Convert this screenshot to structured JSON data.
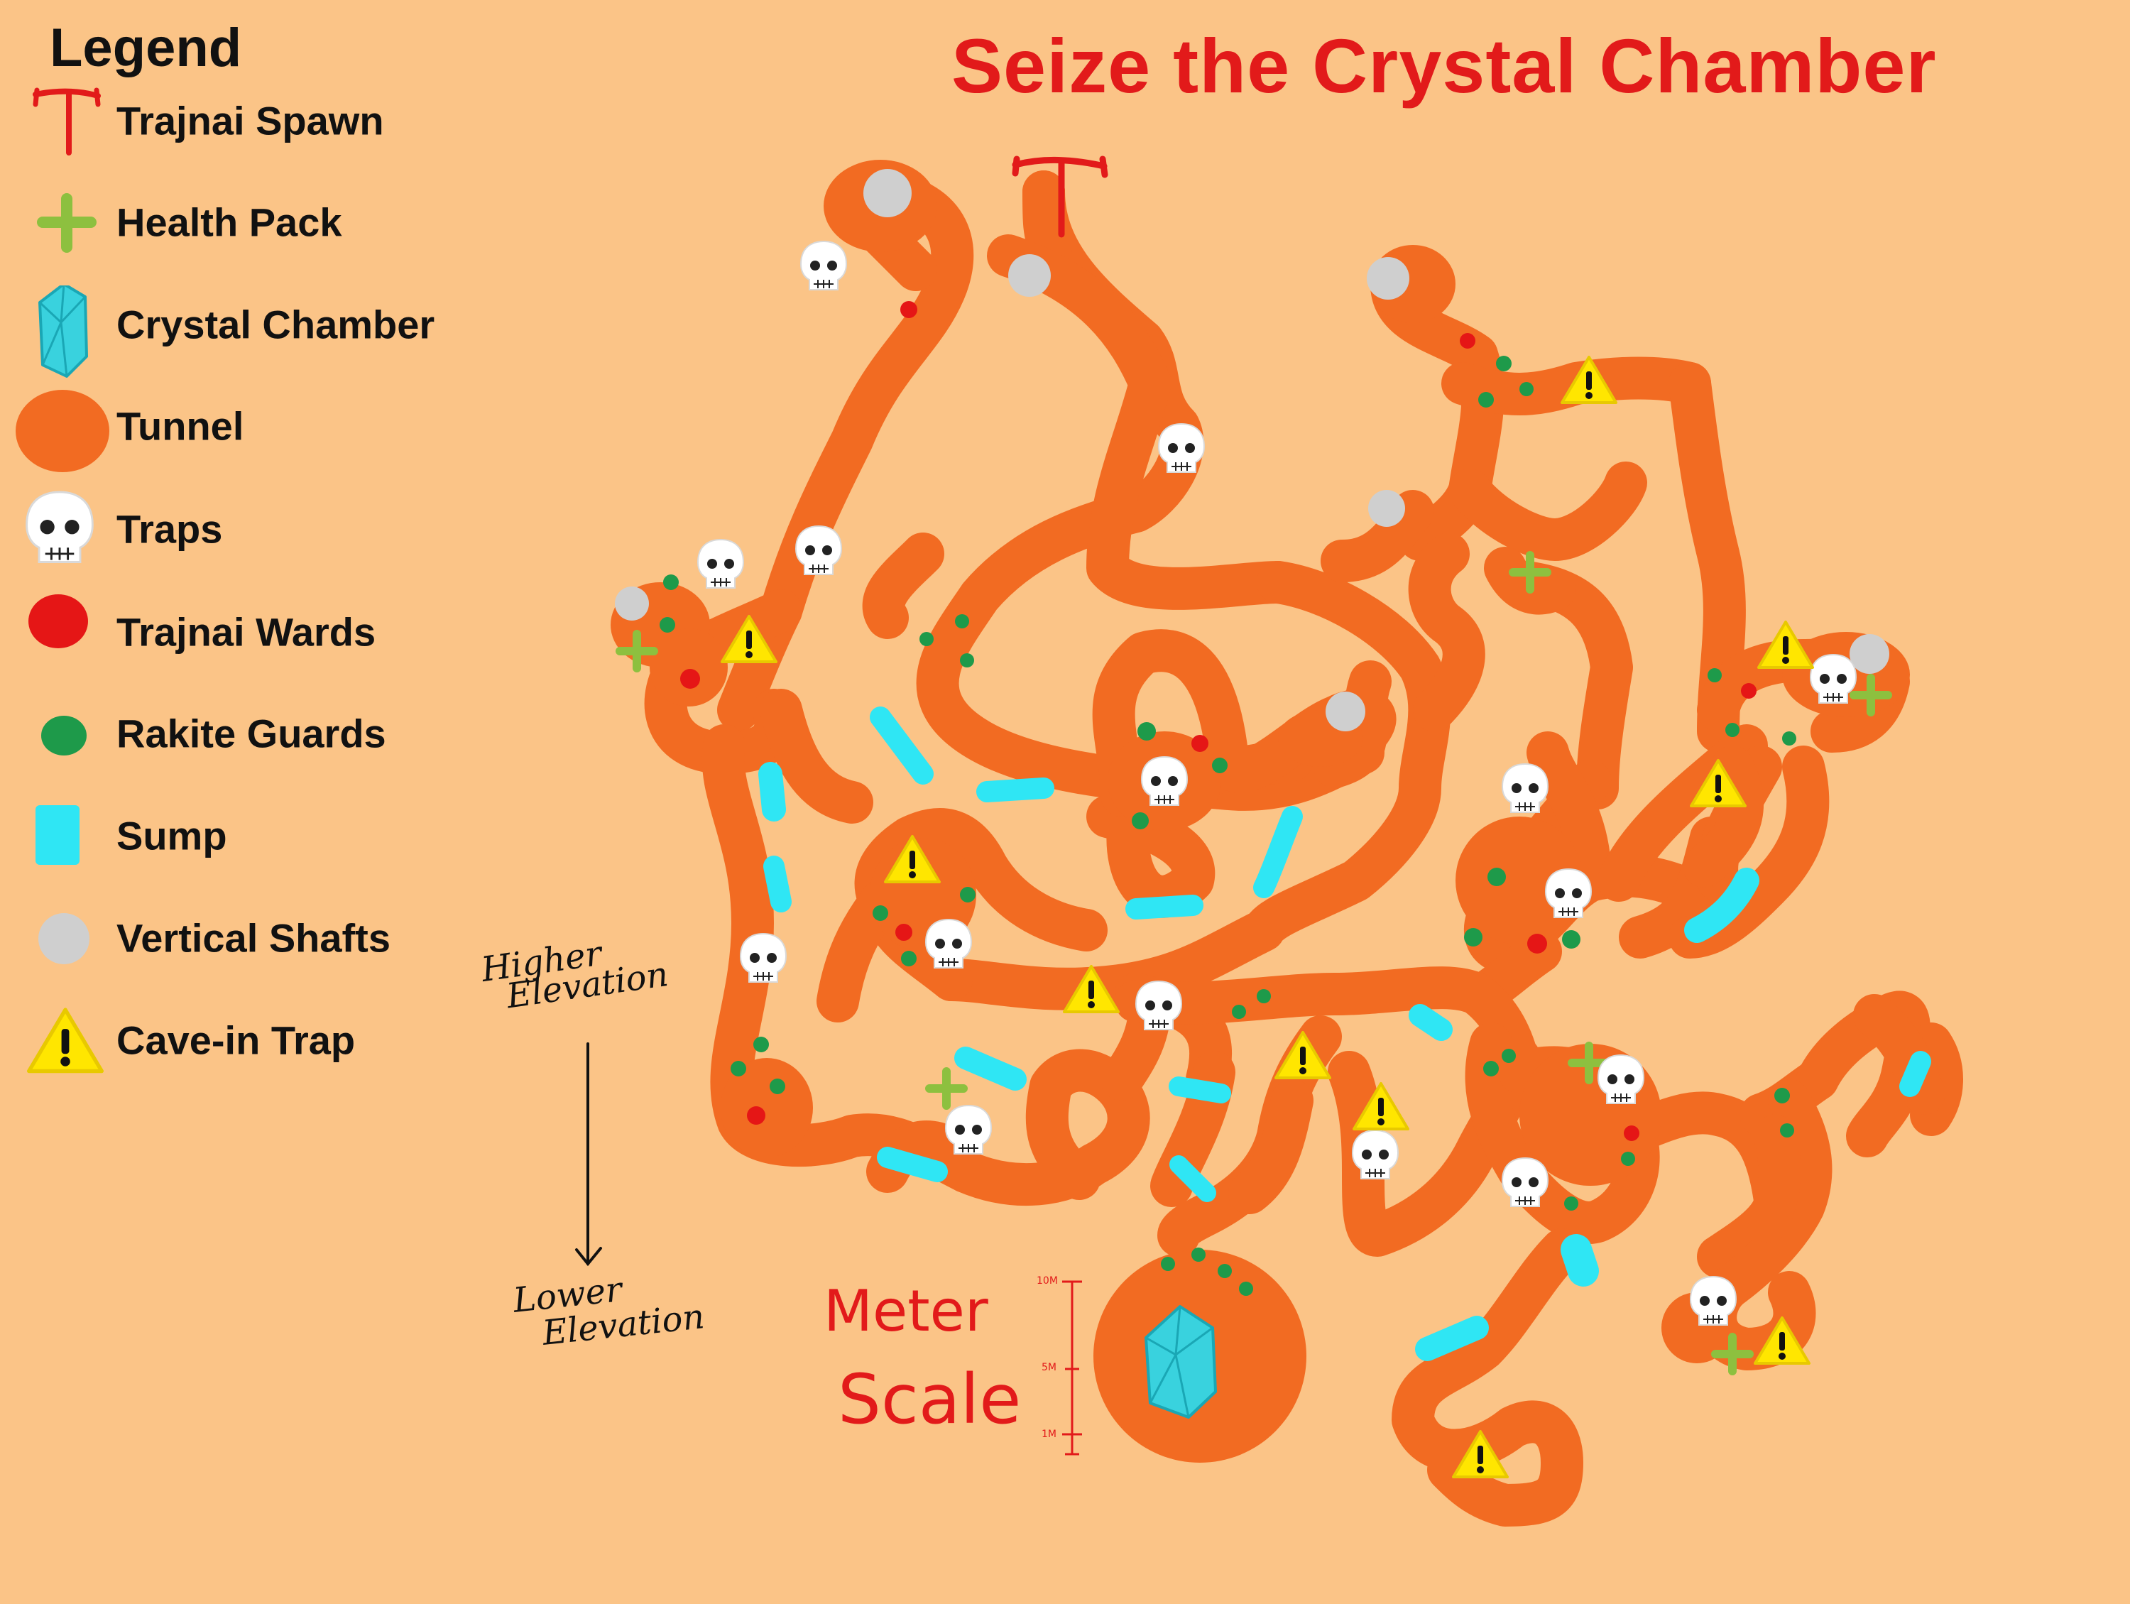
{
  "title": "Seize the Crystal Chamber",
  "legend": {
    "title": "Legend",
    "items": [
      {
        "key": "spawn",
        "label": "Trajnai Spawn",
        "icon": "spawn-icon"
      },
      {
        "key": "health",
        "label": "Health Pack",
        "icon": "health-pack-icon"
      },
      {
        "key": "crystal",
        "label": "Crystal Chamber",
        "icon": "crystal-icon"
      },
      {
        "key": "tunnel",
        "label": "Tunnel",
        "icon": "tunnel-icon"
      },
      {
        "key": "trap",
        "label": "Traps",
        "icon": "skull-icon"
      },
      {
        "key": "ward",
        "label": "Trajnai Wards",
        "icon": "ward-dot-icon"
      },
      {
        "key": "guard",
        "label": "Rakite Guards",
        "icon": "guard-dot-icon"
      },
      {
        "key": "sump",
        "label": "Sump",
        "icon": "sump-icon"
      },
      {
        "key": "shaft",
        "label": "Vertical Shafts",
        "icon": "shaft-circle-icon"
      },
      {
        "key": "cavein",
        "label": "Cave-in Trap",
        "icon": "warning-triangle-icon"
      }
    ]
  },
  "elevation": {
    "higher_line1": "Higher",
    "higher_line2": "Elevation",
    "lower_line1": "Lower",
    "lower_line2": "Elevation"
  },
  "scale": {
    "line1": "Meter",
    "line2": "Scale",
    "ticks": [
      "10M",
      "5M",
      "1M"
    ]
  },
  "colors": {
    "background": "#fbc487",
    "tunnel": "#f26b22",
    "spawn": "#e21a1a",
    "health": "#8dc03f",
    "crystal": "#39d2de",
    "ward": "#e51616",
    "guard": "#1e9a4a",
    "sump": "#2fe6f4",
    "shaft": "#cfcfcf",
    "cavein": "#ffe600",
    "title": "#e21a1a"
  }
}
